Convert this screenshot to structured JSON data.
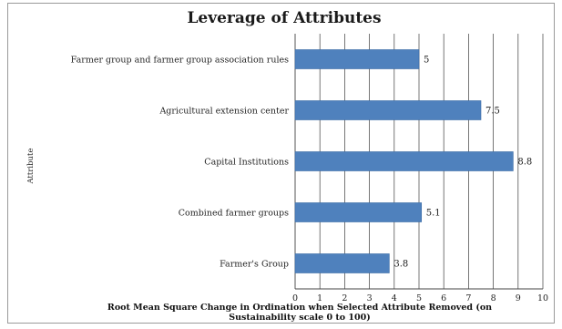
{
  "chart_data": {
    "type": "bar",
    "orientation": "horizontal",
    "title": "Leverage of Attributes",
    "xlabel": "Root Mean Square Change in Ordination when Selected Attribute Removed (on Sustainability scale 0 to 100)",
    "ylabel": "Attribute",
    "categories": [
      "Farmer group and farmer group association rules",
      "Agricultural extension center",
      "Capital Institutions",
      "Combined farmer groups",
      "Farmer's Group"
    ],
    "values": [
      5,
      7.5,
      8.8,
      5.1,
      3.8
    ],
    "data_labels": [
      "5",
      "7.5",
      "8.8",
      "5.1",
      "3.8"
    ],
    "xlim": [
      0,
      10
    ],
    "xticks": [
      "0",
      "1",
      "2",
      "3",
      "4",
      "5",
      "6",
      "7",
      "8",
      "9",
      "10"
    ],
    "grid": "vertical",
    "legend": "none",
    "colors": {
      "bar": "#4f81bd",
      "bar_border": "#3a6aa3",
      "grid": "#555555"
    }
  }
}
